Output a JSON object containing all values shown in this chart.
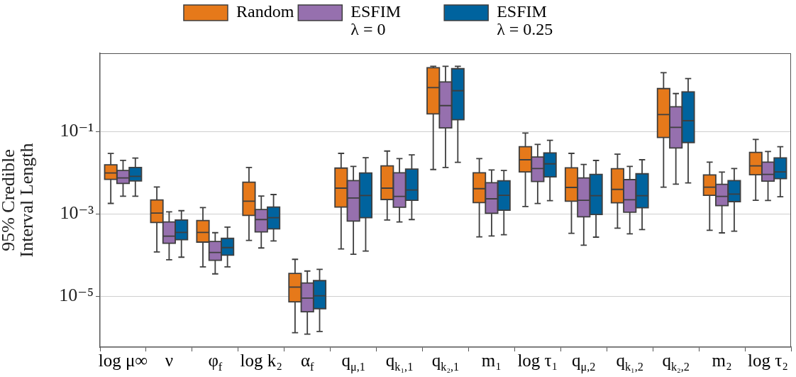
{
  "chart_data": {
    "type": "box",
    "ylabel": "95% Credible\nInterval Length",
    "log": true,
    "grid": "y",
    "legend": "top",
    "categories": [
      "log μ∞",
      "ν",
      "φ$_{f}$",
      "log k₂",
      "α$_{f}$",
      "q$_{μ,1}$",
      "q$_{k₁,1}$",
      "q$_{k₂,1}$",
      "m₁",
      "log τ₁",
      "q$_{μ,2}$",
      "q$_{k₁,2}$",
      "q$_{k₂,2}$",
      "m₂",
      "log τ₂"
    ],
    "ylim": [
      5.8e-07,
      8
    ],
    "yticks": [
      {
        "value": 1e-05,
        "label": "10⁻⁵"
      },
      {
        "value": 0.001,
        "label": "10⁻³"
      },
      {
        "value": 0.1,
        "label": "10⁻¹"
      }
    ],
    "series": [
      {
        "name": "Random",
        "color": "#e6791a",
        "boxes": [
          {
            "low": 0.0018,
            "q1": 0.0069,
            "median": 0.0099,
            "q3": 0.0156,
            "high": 0.0295
          },
          {
            "low": 0.000119,
            "q1": 0.00062,
            "median": 0.00105,
            "q3": 0.00218,
            "high": 0.0045
          },
          {
            "low": 5.2e-05,
            "q1": 0.000207,
            "median": 0.000356,
            "q3": 0.00069,
            "high": 0.00143
          },
          {
            "low": 0.000227,
            "q1": 0.00092,
            "median": 0.00204,
            "q3": 0.00588,
            "high": 0.0134
          },
          {
            "low": 1.3e-06,
            "q1": 7.3e-06,
            "median": 1.67e-05,
            "q3": 3.6e-05,
            "high": 7.9e-05
          },
          {
            "low": 0.000141,
            "q1": 0.00147,
            "median": 0.00423,
            "q3": 0.013,
            "high": 0.0296
          },
          {
            "low": 0.00071,
            "q1": 0.00224,
            "median": 0.00423,
            "q3": 0.0147,
            "high": 0.0337
          },
          {
            "low": 0.012,
            "q1": 0.269,
            "median": 1.17,
            "q3": 3.56,
            "high": 3.86
          },
          {
            "low": 0.000277,
            "q1": 0.00188,
            "median": 0.00411,
            "q3": 0.00998,
            "high": 0.0221
          },
          {
            "low": 0.00152,
            "q1": 0.0105,
            "median": 0.0207,
            "q3": 0.0428,
            "high": 0.0922
          },
          {
            "low": 0.000338,
            "q1": 0.00204,
            "median": 0.0044,
            "q3": 0.0132,
            "high": 0.0296
          },
          {
            "low": 0.000451,
            "q1": 0.00186,
            "median": 0.00395,
            "q3": 0.0125,
            "high": 0.0284
          },
          {
            "low": 0.00446,
            "q1": 0.0718,
            "median": 0.259,
            "q3": 1.11,
            "high": 2.69
          },
          {
            "low": 0.000401,
            "q1": 0.00284,
            "median": 0.00446,
            "q3": 0.00887,
            "high": 0.0181
          },
          {
            "low": 0.00215,
            "q1": 0.00898,
            "median": 0.0147,
            "q3": 0.0312,
            "high": 0.0646
          }
        ]
      },
      {
        "name": "ESFIM\nλ = 0",
        "color": "#9670ae",
        "boxes": [
          {
            "low": 0.0027,
            "q1": 0.0055,
            "median": 0.0075,
            "q3": 0.0114,
            "high": 0.02
          },
          {
            "low": 7.7e-05,
            "q1": 0.000194,
            "median": 0.000288,
            "q3": 0.00064,
            "high": 0.00112
          },
          {
            "low": 3.5e-05,
            "q1": 7.5e-05,
            "median": 0.000116,
            "q3": 0.000215,
            "high": 0.00035
          },
          {
            "low": 0.000149,
            "q1": 0.000365,
            "median": 0.00073,
            "q3": 0.00128,
            "high": 0.00273
          },
          {
            "low": 1.2e-06,
            "q1": 4.2e-06,
            "median": 9e-06,
            "q3": 2.1e-05,
            "high": 4.1e-05
          },
          {
            "low": 0.000105,
            "q1": 0.00067,
            "median": 0.00243,
            "q3": 0.00646,
            "high": 0.0143
          },
          {
            "low": 0.00064,
            "q1": 0.00145,
            "median": 0.00266,
            "q3": 0.00999,
            "high": 0.0221
          },
          {
            "low": 0.0135,
            "q1": 0.123,
            "median": 0.428,
            "q3": 1.61,
            "high": 3.86
          },
          {
            "low": 0.000292,
            "q1": 0.00104,
            "median": 0.00233,
            "q3": 0.00573,
            "high": 0.0117
          },
          {
            "low": 0.00179,
            "q1": 0.00612,
            "median": 0.0127,
            "q3": 0.0242,
            "high": 0.0489
          },
          {
            "low": 0.000174,
            "q1": 0.00085,
            "median": 0.00215,
            "q3": 0.00747,
            "high": 0.0159
          },
          {
            "low": 0.000329,
            "q1": 0.0011,
            "median": 0.00221,
            "q3": 0.00681,
            "high": 0.0143
          },
          {
            "low": 0.0053,
            "q1": 0.0401,
            "median": 0.127,
            "q3": 0.401,
            "high": 0.84
          },
          {
            "low": 0.000347,
            "q1": 0.00159,
            "median": 0.00266,
            "q3": 0.00522,
            "high": 0.0104
          },
          {
            "low": 0.00212,
            "q1": 0.00628,
            "median": 0.0091,
            "q3": 0.0181,
            "high": 0.0329
          }
        ]
      },
      {
        "name": "ESFIM\nλ = 0.25",
        "color": "#00639e",
        "boxes": [
          {
            "low": 0.0027,
            "q1": 0.0063,
            "median": 0.0082,
            "q3": 0.0134,
            "high": 0.0227
          },
          {
            "low": 8.9e-05,
            "q1": 0.000236,
            "median": 0.000356,
            "q3": 0.00071,
            "high": 0.0012
          },
          {
            "low": 5.2e-05,
            "q1": 0.0001,
            "median": 0.000152,
            "q3": 0.000255,
            "high": 0.00048
          },
          {
            "low": 0.000221,
            "q1": 0.000434,
            "median": 0.00081,
            "q3": 0.00147,
            "high": 0.00296
          },
          {
            "low": 1.4e-06,
            "q1": 5e-06,
            "median": 1.03e-05,
            "q3": 2.4e-05,
            "high": 4.5e-05
          },
          {
            "low": 0.000125,
            "q1": 0.00081,
            "median": 0.00281,
            "q3": 0.00986,
            "high": 0.0233
          },
          {
            "low": 0.00073,
            "q1": 0.00215,
            "median": 0.0038,
            "q3": 0.0123,
            "high": 0.0273
          },
          {
            "low": 0.0179,
            "q1": 0.194,
            "median": 0.985,
            "q3": 3.37,
            "high": 3.86
          },
          {
            "low": 0.000312,
            "q1": 0.00123,
            "median": 0.00284,
            "q3": 0.00637,
            "high": 0.0114
          },
          {
            "low": 0.0021,
            "q1": 0.00797,
            "median": 0.0165,
            "q3": 0.0303,
            "high": 0.0612
          },
          {
            "low": 0.000273,
            "q1": 0.00097,
            "median": 0.00277,
            "q3": 0.0091,
            "high": 0.0199
          },
          {
            "low": 0.000417,
            "q1": 0.00141,
            "median": 0.00277,
            "q3": 0.00946,
            "high": 0.0207
          },
          {
            "low": 0.00566,
            "q1": 0.0543,
            "median": 0.184,
            "q3": 0.923,
            "high": 1.94
          },
          {
            "low": 0.00038,
            "q1": 0.00199,
            "median": 0.00303,
            "q3": 0.00646,
            "high": 0.0127
          },
          {
            "low": 0.00262,
            "q1": 0.00717,
            "median": 0.0105,
            "q3": 0.023,
            "high": 0.0428
          }
        ]
      }
    ]
  }
}
